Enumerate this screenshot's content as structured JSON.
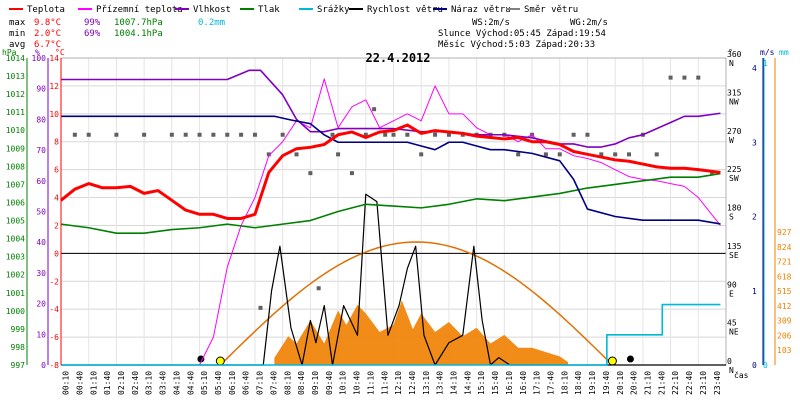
{
  "legend": [
    {
      "label": "Teplota",
      "color": "#ff0000"
    },
    {
      "label": "Přízemní teplota",
      "color": "#ff00ff"
    },
    {
      "label": "Vlhkost",
      "color": "#8000c0"
    },
    {
      "label": "Tlak",
      "color": "#008000"
    },
    {
      "label": "Srážky",
      "color": "#00b8d8"
    },
    {
      "label": "Rychlost větru",
      "color": "#000000"
    },
    {
      "label": "Náraz větru",
      "color": "#000080"
    },
    {
      "label": "Směr větru",
      "color": "#808080"
    }
  ],
  "stats": {
    "max_label": "max",
    "min_label": "min",
    "avg_label": "avg",
    "max_temp": "9.8°C",
    "max_hum": "99%",
    "max_press": "1007.7hPa",
    "max_rain": "0.2mm",
    "min_temp": "2.0°C",
    "min_hum": "69%",
    "min_press": "1004.1hPa",
    "avg_temp": "6.7°C",
    "ws": "WS:2m/s",
    "wg": "WG:2m/s",
    "sun_line": "Slunce Východ:05:45  Západ:19:54",
    "moon_line": "Měsíc  Východ:5:03   Západ:20:33"
  },
  "chart_data": {
    "type": "line",
    "title": "22.4.2012",
    "units": {
      "hpa": "hPa",
      "pct": "%",
      "degc": "°C",
      "deg": "°",
      "ms": "m/s",
      "mm": "mm",
      "time": "čas"
    },
    "time_ticks": [
      "00:10",
      "00:40",
      "01:10",
      "01:40",
      "02:10",
      "02:40",
      "03:10",
      "03:40",
      "04:10",
      "04:40",
      "05:10",
      "05:40",
      "06:10",
      "06:40",
      "07:10",
      "07:40",
      "08:10",
      "08:40",
      "09:10",
      "09:40",
      "10:10",
      "10:40",
      "11:10",
      "11:40",
      "12:10",
      "12:40",
      "13:10",
      "13:40",
      "14:10",
      "14:40",
      "15:10",
      "15:40",
      "16:10",
      "16:40",
      "17:10",
      "17:40",
      "18:10",
      "18:40",
      "19:10",
      "19:40",
      "20:10",
      "20:40",
      "21:10",
      "21:40",
      "22:10",
      "22:40",
      "23:10",
      "23:40"
    ],
    "axes": {
      "pressure_hpa": {
        "min": 997,
        "max": 1014,
        "ticks": [
          997,
          998,
          999,
          1000,
          1001,
          1002,
          1003,
          1004,
          1005,
          1006,
          1007,
          1008,
          1009,
          1010,
          1011,
          1012,
          1013,
          1014
        ]
      },
      "humidity_pct": {
        "min": 0,
        "max": 100,
        "ticks": [
          0,
          10,
          20,
          30,
          40,
          50,
          60,
          70,
          80,
          90,
          100
        ]
      },
      "temperature_c": {
        "min": -8,
        "max": 14,
        "ticks": [
          -8,
          -6,
          -4,
          -2,
          0,
          2,
          4,
          6,
          8,
          10,
          12,
          14
        ]
      },
      "wind_dir_deg": {
        "min": 0,
        "max": 360,
        "ticks": [
          0,
          45,
          90,
          135,
          180,
          225,
          270,
          315,
          360
        ],
        "labels": [
          "N",
          "NE",
          "E",
          "SE",
          "S",
          "SW",
          "W",
          "NW",
          "N"
        ]
      },
      "wind_speed_ms": {
        "min": 0,
        "max": 4,
        "ticks": [
          0,
          1,
          2,
          3,
          4
        ]
      },
      "rain_mm": {
        "min": 0,
        "max": 1,
        "ticks": [
          0,
          1
        ]
      },
      "sun_power": {
        "ticks": [
          103,
          206,
          309,
          412,
          515,
          618,
          721,
          824,
          927
        ]
      }
    },
    "series": [
      {
        "name": "Teplota",
        "color": "#ff0000",
        "axis": "temperature_c",
        "x": [
          0,
          0.5,
          1,
          1.5,
          2,
          2.5,
          3,
          3.5,
          4,
          4.5,
          5,
          5.5,
          6,
          6.5,
          7,
          7.5,
          8,
          8.5,
          9,
          9.5,
          10,
          10.5,
          11,
          11.5,
          12,
          12.5,
          13,
          13.5,
          14,
          14.5,
          15,
          15.5,
          16,
          16.5,
          17,
          17.5,
          18,
          18.5,
          19,
          19.5,
          20,
          20.5,
          21,
          21.5,
          22,
          22.5,
          23,
          23.8
        ],
        "y": [
          3.8,
          4.6,
          5.0,
          4.7,
          4.7,
          4.8,
          4.3,
          4.5,
          3.8,
          3.1,
          2.8,
          2.8,
          2.5,
          2.5,
          2.8,
          5.8,
          7.0,
          7.5,
          7.6,
          7.8,
          8.5,
          8.7,
          8.3,
          8.7,
          8.8,
          9.2,
          8.6,
          8.8,
          8.7,
          8.6,
          8.4,
          8.3,
          8.2,
          8.3,
          8.0,
          8.0,
          7.8,
          7.3,
          7.1,
          6.9,
          6.7,
          6.6,
          6.4,
          6.2,
          6.1,
          6.1,
          6.0,
          5.8
        ]
      },
      {
        "name": "Přízemní teplota",
        "color": "#ff00ff",
        "axis": "temperature_c",
        "x": [
          0,
          1,
          2,
          3,
          4,
          5,
          5.5,
          6,
          6.5,
          7,
          7.5,
          8,
          8.5,
          9,
          9.5,
          10,
          10.5,
          11,
          11.5,
          12,
          12.5,
          13,
          13.5,
          14,
          14.5,
          15,
          15.5,
          16,
          16.5,
          17,
          17.5,
          18,
          18.5,
          19,
          19.5,
          20,
          20.5,
          21,
          21.5,
          22,
          22.5,
          23,
          23.8
        ],
        "y": [
          -8,
          -8,
          -8,
          -8,
          -8,
          -8,
          -6,
          -1,
          2,
          4,
          7,
          8,
          9.5,
          9,
          12.5,
          9,
          10.5,
          11,
          9,
          9.5,
          10,
          9.5,
          12,
          10,
          10,
          9,
          8.5,
          8.5,
          8,
          8.5,
          7.5,
          7.5,
          7,
          6.8,
          6.5,
          6,
          5.5,
          5.3,
          5.2,
          5.0,
          4.8,
          4.0,
          2.0
        ]
      },
      {
        "name": "Vlhkost",
        "color": "#8000c0",
        "axis": "humidity_pct",
        "x": [
          0,
          1,
          2,
          3,
          4,
          5,
          6,
          6.8,
          7.2,
          8,
          8.5,
          9,
          9.5,
          10,
          11,
          12,
          13,
          14,
          15,
          16,
          17,
          17.5,
          18,
          18.5,
          19,
          19.5,
          20,
          20.5,
          21,
          21.5,
          22,
          22.5,
          23,
          23.8
        ],
        "y": [
          93,
          93,
          93,
          93,
          93,
          93,
          93,
          96,
          96,
          88,
          80,
          76,
          76,
          77,
          77,
          77,
          76,
          76,
          75,
          75,
          74,
          73,
          72,
          72,
          71,
          71,
          72,
          74,
          75,
          77,
          79,
          81,
          81,
          82
        ]
      },
      {
        "name": "Tlak",
        "color": "#008000",
        "axis": "pressure_hpa",
        "x": [
          0,
          1,
          2,
          3,
          4,
          5,
          6,
          7,
          8,
          9,
          10,
          11,
          12,
          13,
          14,
          15,
          16,
          17,
          18,
          19,
          20,
          21,
          22,
          23,
          23.8
        ],
        "y": [
          1004.8,
          1004.6,
          1004.3,
          1004.3,
          1004.5,
          1004.6,
          1004.8,
          1004.6,
          1004.8,
          1005.0,
          1005.5,
          1005.9,
          1005.8,
          1005.7,
          1005.9,
          1006.2,
          1006.1,
          1006.3,
          1006.5,
          1006.8,
          1007.0,
          1007.2,
          1007.4,
          1007.4,
          1007.6
        ]
      },
      {
        "name": "Srážky",
        "color": "#00b8d8",
        "axis": "rain_mm",
        "x": [
          0,
          19.7,
          19.7,
          21.7,
          21.7,
          23.8
        ],
        "y": [
          0,
          0,
          0.1,
          0.1,
          0.2,
          0.2
        ]
      },
      {
        "name": "Rychlost větru",
        "color": "#000000",
        "axis": "wind_speed_ms",
        "x": [
          0,
          7.3,
          7.6,
          7.9,
          8.3,
          8.7,
          9.0,
          9.2,
          9.5,
          9.8,
          10.2,
          10.7,
          11.0,
          11.4,
          11.8,
          12.2,
          12.5,
          12.8,
          13.1,
          13.5,
          14.0,
          14.5,
          14.9,
          15.2,
          15.5,
          15.8,
          16.2,
          24
        ],
        "y": [
          0,
          0,
          1,
          1.6,
          0.5,
          0,
          0.6,
          0.3,
          0.8,
          0,
          0.8,
          0.4,
          2.3,
          2.2,
          0.4,
          0.8,
          1.3,
          1.6,
          0.4,
          0,
          0.3,
          0.4,
          1.6,
          0.6,
          0,
          0.1,
          0,
          0
        ]
      },
      {
        "name": "Náraz větru",
        "color": "#000080",
        "axis": "wind_speed_ms",
        "x": [
          0,
          6,
          7,
          7.7,
          8.3,
          9,
          9.5,
          10,
          10.5,
          11,
          11.5,
          12,
          12.5,
          13,
          13.5,
          14,
          14.5,
          15,
          15.5,
          16,
          17,
          18,
          18.5,
          19,
          20,
          21,
          22,
          23,
          23.8
        ],
        "y": [
          3.35,
          3.35,
          3.35,
          3.35,
          3.3,
          3.25,
          3.1,
          3.0,
          3.0,
          3.0,
          3.0,
          3.0,
          3.0,
          2.95,
          2.9,
          3.0,
          3.0,
          2.95,
          2.9,
          2.9,
          2.85,
          2.75,
          2.5,
          2.1,
          2.0,
          1.95,
          1.95,
          1.95,
          1.9
        ]
      }
    ],
    "wind_direction_points": {
      "axis": "wind_dir_deg",
      "x": [
        0.5,
        1,
        2,
        3,
        4,
        4.5,
        5,
        5.5,
        6,
        6.5,
        7,
        7.2,
        7.5,
        8,
        8.5,
        9,
        9.3,
        9.8,
        10,
        10.5,
        11,
        11.3,
        11.7,
        12,
        12.5,
        13,
        13.5,
        14,
        14.5,
        15,
        15.5,
        16,
        16.5,
        17,
        17.5,
        18,
        18.5,
        19,
        19.5,
        20,
        20.5,
        21,
        21.5,
        22,
        22.5,
        23,
        23.5
      ],
      "y": [
        270,
        270,
        270,
        270,
        270,
        270,
        270,
        270,
        270,
        270,
        270,
        67,
        247,
        270,
        247,
        225,
        90,
        270,
        247,
        225,
        270,
        300,
        270,
        270,
        270,
        247,
        270,
        270,
        270,
        270,
        270,
        270,
        247,
        270,
        247,
        247,
        270,
        270,
        247,
        247,
        247,
        270,
        247,
        337,
        337,
        337,
        225
      ]
    },
    "sun_power": {
      "note": "solar radiation area",
      "x": [
        7.7,
        8.2,
        8.5,
        9.0,
        9.5,
        10.0,
        10.3,
        10.7,
        11.0,
        11.5,
        12.0,
        12.3,
        12.7,
        13.0,
        13.5,
        14.0,
        14.5,
        15.0,
        15.5,
        16.0,
        16.5,
        17.0,
        17.5,
        18.0,
        18.3
      ],
      "y": [
        50,
        200,
        150,
        310,
        150,
        380,
        280,
        420,
        360,
        230,
        280,
        450,
        250,
        360,
        230,
        300,
        200,
        260,
        150,
        210,
        120,
        120,
        90,
        60,
        20
      ]
    },
    "sun_elevation": {
      "sunrise": "05:45",
      "sunset": "19:54"
    }
  }
}
